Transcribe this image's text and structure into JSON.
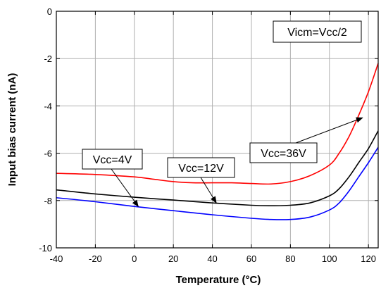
{
  "chart_data": {
    "type": "line",
    "xlabel": "Temperature (°C)",
    "ylabel": "Input bias current (nA)",
    "xlim": [
      -40,
      125
    ],
    "ylim": [
      -10,
      0
    ],
    "xticks": [
      -40,
      -20,
      0,
      20,
      40,
      60,
      80,
      100,
      120
    ],
    "yticks": [
      0,
      -2,
      -4,
      -6,
      -8,
      -10
    ],
    "grid": true,
    "series": [
      {
        "name": "Vcc=36V",
        "color": "#ff0000",
        "x": [
          -40,
          -20,
          0,
          10,
          20,
          30,
          40,
          50,
          60,
          70,
          80,
          90,
          100,
          105,
          110,
          115,
          120,
          125
        ],
        "y": [
          -6.85,
          -6.9,
          -7.0,
          -7.1,
          -7.2,
          -7.25,
          -7.25,
          -7.25,
          -7.28,
          -7.3,
          -7.2,
          -6.95,
          -6.5,
          -6.0,
          -5.3,
          -4.4,
          -3.4,
          -2.2
        ]
      },
      {
        "name": "Vcc=12V",
        "color": "#000000",
        "x": [
          -40,
          -20,
          0,
          20,
          40,
          60,
          70,
          80,
          90,
          100,
          105,
          110,
          115,
          120,
          125
        ],
        "y": [
          -7.55,
          -7.72,
          -7.86,
          -7.98,
          -8.1,
          -8.2,
          -8.22,
          -8.2,
          -8.1,
          -7.8,
          -7.5,
          -7.0,
          -6.4,
          -5.8,
          -5.05
        ]
      },
      {
        "name": "Vcc=4V",
        "color": "#0000ff",
        "x": [
          -40,
          -20,
          0,
          20,
          40,
          60,
          70,
          80,
          90,
          100,
          105,
          110,
          115,
          120,
          125
        ],
        "y": [
          -7.88,
          -8.05,
          -8.25,
          -8.43,
          -8.6,
          -8.75,
          -8.8,
          -8.8,
          -8.7,
          -8.4,
          -8.1,
          -7.6,
          -7.0,
          -6.4,
          -5.75
        ]
      }
    ],
    "annotations": [
      {
        "text": "Vicm=Vcc/2"
      },
      {
        "text": "Vcc=36V",
        "arrow_to": [
          117,
          -4.5
        ]
      },
      {
        "text": "Vcc=12V",
        "arrow_to": [
          42,
          -8.1
        ]
      },
      {
        "text": "Vcc=4V",
        "arrow_to": [
          2,
          -8.25
        ]
      }
    ]
  }
}
